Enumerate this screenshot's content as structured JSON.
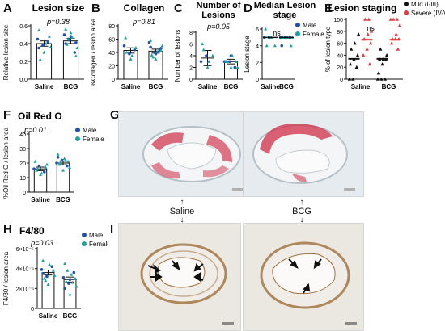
{
  "panels": {
    "A": {
      "letter": "A"
    },
    "B": {
      "letter": "B"
    },
    "C": {
      "letter": "C"
    },
    "D": {
      "letter": "D"
    },
    "E": {
      "letter": "E"
    },
    "F": {
      "letter": "F"
    },
    "G": {
      "letter": "G"
    },
    "H": {
      "letter": "H"
    },
    "I": {
      "letter": "I"
    }
  },
  "colors": {
    "male": "#1f4fb5",
    "female": "#1aa39a",
    "mild": "#111111",
    "severe": "#e0393f",
    "stain_red": "#d23a52",
    "stain_brown": "#a0703a"
  },
  "micro_labels": {
    "saline": "Saline",
    "bcg": "BCG"
  },
  "chart_data": [
    {
      "id": "A",
      "type": "bar",
      "title": "Lesion size",
      "pvalue": "p=0.38",
      "ylabel": "Relative lesion size",
      "categories": [
        "Saline",
        "BCG"
      ],
      "ylim": [
        0,
        0.6
      ],
      "yticks": [
        "0.0",
        "0.2",
        "0.4",
        "0.6"
      ],
      "means": [
        0.4,
        0.43
      ],
      "sem": [
        0.03,
        0.03
      ],
      "points": {
        "Saline": {
          "male": [
            0.45,
            0.38,
            0.42,
            0.35
          ],
          "female": [
            0.55,
            0.3,
            0.48,
            0.22,
            0.4,
            0.36
          ]
        },
        "BCG": {
          "male": [
            0.5,
            0.44,
            0.3,
            0.4,
            0.48,
            0.41
          ],
          "female": [
            0.56,
            0.52,
            0.26,
            0.39,
            0.47,
            0.35,
            0.45
          ]
        }
      }
    },
    {
      "id": "B",
      "type": "bar",
      "title": "Collagen",
      "pvalue": "p=0.81",
      "ylabel": "%Collagen / lesion area",
      "categories": [
        "Saline",
        "BCG"
      ],
      "ylim": [
        0,
        80
      ],
      "yticks": [
        "0",
        "20",
        "40",
        "60",
        "80"
      ],
      "means": [
        43,
        42
      ],
      "sem": [
        4,
        3
      ],
      "points": {
        "Saline": {
          "male": [
            50,
            38,
            44
          ],
          "female": [
            62,
            30,
            47,
            40,
            35
          ]
        },
        "BCG": {
          "male": [
            55,
            40,
            44,
            48,
            38,
            46
          ],
          "female": [
            58,
            30,
            43,
            36,
            41,
            50,
            33
          ]
        }
      }
    },
    {
      "id": "C",
      "type": "bar",
      "title": "Number of Lesions",
      "pvalue": "p=0.05",
      "ylabel": "Number of lesions",
      "categories": [
        "Saline",
        "BCG"
      ],
      "ylim": [
        0,
        8
      ],
      "yticks": [
        "0",
        "2",
        "4",
        "6",
        "8"
      ],
      "means": [
        3.6,
        3.0
      ],
      "sem": [
        1.3,
        0.4
      ],
      "points": {
        "Saline": {
          "male": [
            3,
            4
          ],
          "female": [
            6,
            2,
            4,
            5,
            3
          ]
        },
        "BCG": {
          "male": [
            3,
            3,
            2,
            3,
            4
          ],
          "female": [
            3,
            2,
            3,
            3,
            4,
            2
          ]
        }
      }
    },
    {
      "id": "D",
      "type": "scatter",
      "title": "Median Lesion stage",
      "pvalue": "ns",
      "ylabel": "Lesion stage",
      "categories": [
        "Saline",
        "BCG"
      ],
      "ylim": [
        0,
        6
      ],
      "yticks": [
        "0",
        "2",
        "4",
        "6"
      ],
      "medians": [
        5,
        5
      ],
      "legend": [
        "Male",
        "Female"
      ],
      "points": {
        "Saline": {
          "male": [
            5,
            5
          ],
          "female": [
            6,
            5,
            4,
            4,
            5
          ]
        },
        "BCG": {
          "male": [
            5,
            5,
            5,
            4,
            5
          ],
          "female": [
            5,
            5,
            4,
            5,
            5,
            5
          ]
        }
      }
    },
    {
      "id": "E",
      "type": "scatter",
      "title": "Lesion staging",
      "pvalue": "ns",
      "ylabel": "% of lesion type",
      "categories": [
        "Saline",
        "BCG"
      ],
      "ylim": [
        0,
        100
      ],
      "yticks": [
        "0",
        "20",
        "40",
        "60",
        "80",
        "100"
      ],
      "legend": [
        "Mild (I-III)",
        "Severe (IV-VI)"
      ],
      "medians": {
        "Saline": {
          "mild": 34,
          "severe": 66
        },
        "BCG": {
          "mild": 34,
          "severe": 66
        }
      },
      "points": {
        "Saline": {
          "mild": [
            0,
            0,
            20,
            25,
            33,
            40,
            50,
            60,
            75
          ],
          "severe": [
            25,
            40,
            50,
            60,
            67,
            75,
            80,
            100,
            100
          ]
        },
        "BCG": {
          "mild": [
            0,
            0,
            0,
            10,
            25,
            33,
            33,
            33,
            40,
            50
          ],
          "severe": [
            50,
            60,
            67,
            67,
            67,
            75,
            90,
            100,
            100,
            100
          ]
        }
      }
    },
    {
      "id": "F",
      "type": "bar",
      "title": "Oil Red O",
      "pvalue": "p=0.01",
      "ylabel": "%Oil Red O / lesion area",
      "categories": [
        "Saline",
        "BCG"
      ],
      "ylim": [
        0,
        40
      ],
      "yticks": [
        "0",
        "10",
        "20",
        "30",
        "40"
      ],
      "means": [
        16,
        20
      ],
      "sem": [
        1.2,
        1.2
      ],
      "legend": [
        "Male",
        "Female"
      ],
      "points": {
        "Saline": {
          "male": [
            16,
            18,
            14
          ],
          "female": [
            21,
            12,
            17,
            15,
            13,
            19,
            16
          ]
        },
        "BCG": {
          "male": [
            20,
            22,
            18,
            24
          ],
          "female": [
            26,
            15,
            21,
            19,
            23,
            17,
            20,
            22
          ]
        }
      }
    },
    {
      "id": "H",
      "type": "bar",
      "title": "F4/80",
      "pvalue": "p=0.03",
      "ylabel": "F4/80 / lesion area",
      "categories": [
        "Saline",
        "BCG"
      ],
      "ylim": [
        0,
        6e-05
      ],
      "yticks": [
        "0",
        "2×10⁻⁵",
        "4×10⁻⁵",
        "6×10⁻⁵"
      ],
      "means": [
        3.6e-05,
        2.9e-05
      ],
      "sem": [
        2.5e-06,
        2.5e-06
      ],
      "legend": [
        "Male",
        "Female"
      ],
      "points": {
        "Saline": {
          "male": [
            3.9e-05,
            3.2e-05,
            4.2e-05,
            3.5e-05
          ],
          "female": [
            4.8e-05,
            2.4e-05,
            3.8e-05,
            3e-05,
            4.4e-05,
            3.3e-05,
            2.8e-05
          ]
        },
        "BCG": {
          "male": [
            3.1e-05,
            2.5e-05,
            3.6e-05,
            2e-05,
            2.9e-05
          ],
          "female": [
            4.5e-05,
            1.4e-05,
            3e-05,
            2.7e-05,
            3.4e-05,
            2.2e-05,
            3.8e-05,
            2.6e-05
          ]
        }
      }
    }
  ]
}
